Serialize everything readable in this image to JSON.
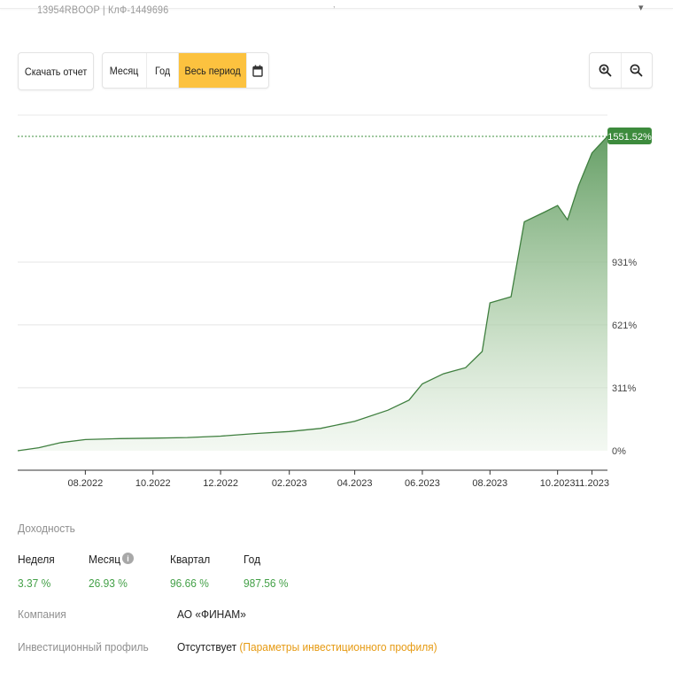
{
  "header": {
    "account_line": "13954RBOOP | КлФ-1449696"
  },
  "toolbar": {
    "download_label": "Скачать отчет",
    "periods": [
      "Месяц",
      "Год",
      "Весь период"
    ],
    "active_period": "Весь период"
  },
  "icons": {
    "calendar": "calendar-icon",
    "zoom_in": "zoom-in-icon",
    "zoom_out": "zoom-out-icon",
    "info": "info-icon"
  },
  "colors": {
    "accent_yellow": "#fcc23f",
    "chart_green": "#3f8f3f",
    "positive_green": "#43a047",
    "link_orange": "#e69a12"
  },
  "chart_data": {
    "type": "area",
    "x_tick_labels": [
      "08.2022",
      "10.2022",
      "12.2022",
      "02.2023",
      "04.2023",
      "06.2023",
      "08.2023",
      "10.2023",
      "11.2023"
    ],
    "y_tick_labels": [
      "0%",
      "311%",
      "621%",
      "931%"
    ],
    "ylim": [
      0,
      1551.52
    ],
    "current_value_label": "1551.52%",
    "y_axis_position": "right",
    "grid": true,
    "series": [
      {
        "unit": "%",
        "points": [
          [
            "2022-06-01",
            0
          ],
          [
            "2022-06-20",
            15
          ],
          [
            "2022-07-10",
            40
          ],
          [
            "2022-08-01",
            55
          ],
          [
            "2022-09-01",
            60
          ],
          [
            "2022-10-01",
            62
          ],
          [
            "2022-11-01",
            65
          ],
          [
            "2022-12-01",
            72
          ],
          [
            "2023-01-01",
            85
          ],
          [
            "2023-02-01",
            95
          ],
          [
            "2023-03-01",
            110
          ],
          [
            "2023-04-01",
            145
          ],
          [
            "2023-05-01",
            200
          ],
          [
            "2023-05-20",
            250
          ],
          [
            "2023-06-01",
            330
          ],
          [
            "2023-06-20",
            380
          ],
          [
            "2023-07-10",
            410
          ],
          [
            "2023-07-25",
            490
          ],
          [
            "2023-08-01",
            730
          ],
          [
            "2023-08-20",
            760
          ],
          [
            "2023-09-01",
            1130
          ],
          [
            "2023-09-20",
            1180
          ],
          [
            "2023-10-01",
            1210
          ],
          [
            "2023-10-10",
            1140
          ],
          [
            "2023-10-20",
            1310
          ],
          [
            "2023-11-01",
            1470
          ],
          [
            "2023-11-15",
            1551.52
          ]
        ]
      }
    ]
  },
  "returns": {
    "title": "Доходность",
    "items": [
      {
        "label": "Неделя",
        "value": "3.37 %"
      },
      {
        "label": "Месяц",
        "value": "26.93 %"
      },
      {
        "label": "Квартал",
        "value": "96.66 %"
      },
      {
        "label": "Год",
        "value": "987.56 %"
      }
    ]
  },
  "company": {
    "label": "Компания",
    "value": "АО «ФИНАМ»"
  },
  "profile": {
    "label": "Инвестиционный профиль",
    "value": "Отсутствует",
    "link": "(Параметры инвестиционного профиля)"
  }
}
